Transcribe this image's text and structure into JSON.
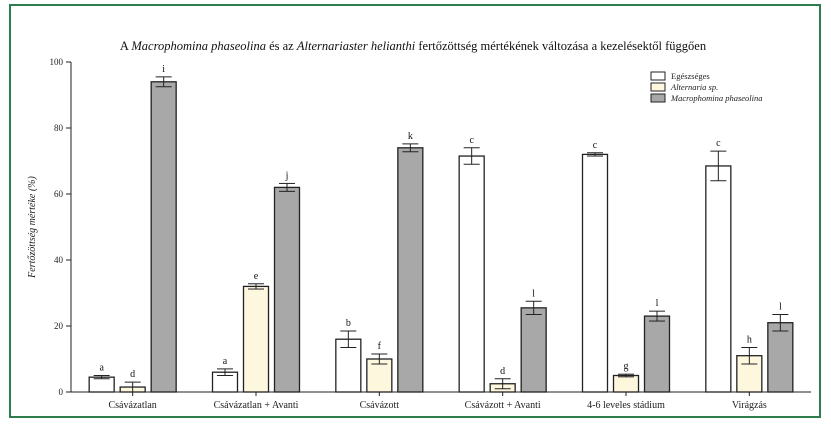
{
  "chart_data": {
    "type": "bar",
    "title_parts": [
      {
        "text": "A ",
        "italic": false
      },
      {
        "text": "Macrophomina phaseolina",
        "italic": true
      },
      {
        "text": " és az ",
        "italic": false
      },
      {
        "text": "Alternariaster helianthi",
        "italic": true
      },
      {
        "text": " fertőzöttség mértékének változása a kezelésektől függően",
        "italic": false
      }
    ],
    "ylabel": "Fertőzöttség mértéke (%)",
    "ylim": [
      0,
      100
    ],
    "yticks": [
      "0",
      "20",
      "40",
      "60",
      "80",
      "100"
    ],
    "categories": [
      "Csávázatlan",
      "Csávázatlan + Avanti",
      "Csávázott",
      "Csávázott + Avanti",
      "4-6 leveles stádium",
      "Virágzás"
    ],
    "legend_position": "top-right",
    "series": [
      {
        "name": "Egészséges",
        "italic": false,
        "color": "#ffffff",
        "values": [
          4.5,
          6,
          16,
          71.5,
          72,
          68.5
        ],
        "errors": [
          0.5,
          1,
          2.5,
          2.5,
          0.5,
          4.5
        ],
        "labels": [
          "a",
          "a",
          "b",
          "c",
          "c",
          "c"
        ]
      },
      {
        "name": "Alternaria sp.",
        "italic": true,
        "color": "#fdf7de",
        "values": [
          1.5,
          32,
          10,
          2.5,
          5,
          11
        ],
        "errors": [
          1.5,
          0.8,
          1.5,
          1.5,
          0.4,
          2.5
        ],
        "labels": [
          "d",
          "e",
          "f",
          "d",
          "g",
          "h"
        ]
      },
      {
        "name": "Macrophomina phaseolina",
        "italic": true,
        "color": "#a8a8a8",
        "values": [
          94,
          62,
          74,
          25.5,
          23,
          21
        ],
        "errors": [
          1.5,
          1.2,
          1.2,
          2,
          1.5,
          2.5
        ],
        "labels": [
          "i",
          "j",
          "k",
          "l",
          "l",
          "l"
        ]
      }
    ]
  }
}
